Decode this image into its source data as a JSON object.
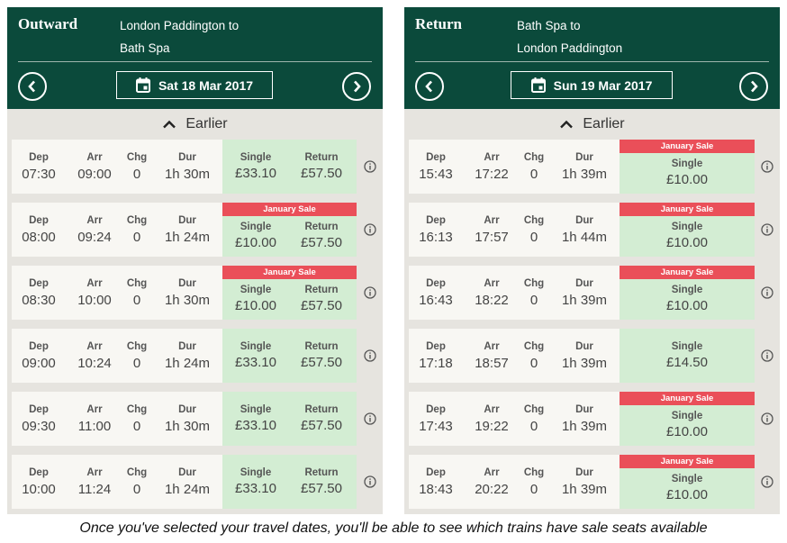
{
  "outward": {
    "title": "Outward",
    "route_from": "London Paddington to",
    "route_to": "Bath Spa",
    "date": "Sat 18 Mar 2017",
    "earlier_label": "Earlier",
    "headers": {
      "dep": "Dep",
      "arr": "Arr",
      "chg": "Chg",
      "dur": "Dur",
      "single": "Single",
      "return": "Return"
    },
    "journeys": [
      {
        "dep": "07:30",
        "arr": "09:00",
        "chg": "0",
        "dur": "1h 30m",
        "single": "£33.10",
        "return": "£57.50",
        "sale": ""
      },
      {
        "dep": "08:00",
        "arr": "09:24",
        "chg": "0",
        "dur": "1h 24m",
        "single": "£10.00",
        "return": "£57.50",
        "sale": "January Sale"
      },
      {
        "dep": "08:30",
        "arr": "10:00",
        "chg": "0",
        "dur": "1h 30m",
        "single": "£10.00",
        "return": "£57.50",
        "sale": "January Sale"
      },
      {
        "dep": "09:00",
        "arr": "10:24",
        "chg": "0",
        "dur": "1h 24m",
        "single": "£33.10",
        "return": "£57.50",
        "sale": ""
      },
      {
        "dep": "09:30",
        "arr": "11:00",
        "chg": "0",
        "dur": "1h 30m",
        "single": "£33.10",
        "return": "£57.50",
        "sale": ""
      },
      {
        "dep": "10:00",
        "arr": "11:24",
        "chg": "0",
        "dur": "1h 24m",
        "single": "£33.10",
        "return": "£57.50",
        "sale": ""
      }
    ]
  },
  "return": {
    "title": "Return",
    "route_from": "Bath Spa to",
    "route_to": "London Paddington",
    "date": "Sun 19 Mar 2017",
    "earlier_label": "Earlier",
    "headers": {
      "dep": "Dep",
      "arr": "Arr",
      "chg": "Chg",
      "dur": "Dur",
      "single": "Single"
    },
    "journeys": [
      {
        "dep": "15:43",
        "arr": "17:22",
        "chg": "0",
        "dur": "1h 39m",
        "single": "£10.00",
        "sale": "January Sale"
      },
      {
        "dep": "16:13",
        "arr": "17:57",
        "chg": "0",
        "dur": "1h 44m",
        "single": "£10.00",
        "sale": "January Sale"
      },
      {
        "dep": "16:43",
        "arr": "18:22",
        "chg": "0",
        "dur": "1h 39m",
        "single": "£10.00",
        "sale": "January Sale"
      },
      {
        "dep": "17:18",
        "arr": "18:57",
        "chg": "0",
        "dur": "1h 39m",
        "single": "£14.50",
        "sale": ""
      },
      {
        "dep": "17:43",
        "arr": "19:22",
        "chg": "0",
        "dur": "1h 39m",
        "single": "£10.00",
        "sale": "January Sale"
      },
      {
        "dep": "18:43",
        "arr": "20:22",
        "chg": "0",
        "dur": "1h 39m",
        "single": "£10.00",
        "sale": "January Sale"
      }
    ]
  },
  "caption": "Once you've selected your travel dates, you'll be able to see which trains have sale seats available",
  "colors": {
    "header_green": "#0b4a3b",
    "fare_green": "#d3edd3",
    "sale_red": "#ea4f59"
  },
  "icons": {
    "prev": "chevron-left-icon",
    "next": "chevron-right-icon",
    "date": "calendar-icon",
    "earlier": "chevron-up-icon",
    "info": "info-icon"
  }
}
